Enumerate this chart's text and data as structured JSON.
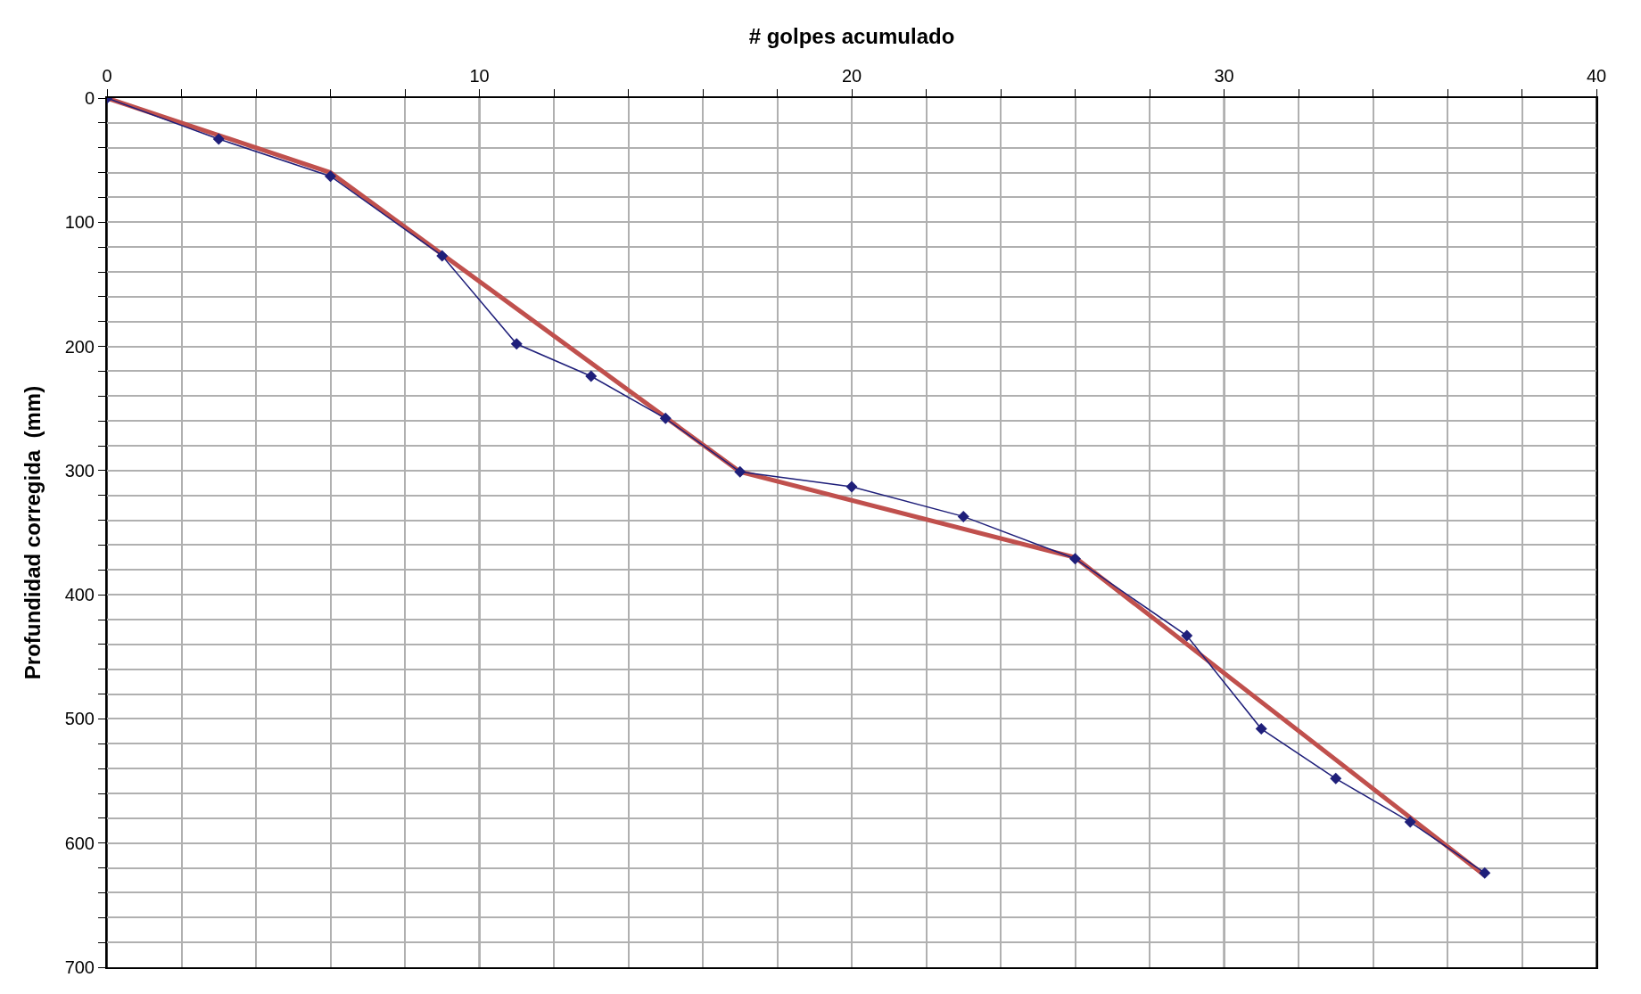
{
  "chart_data": {
    "type": "line",
    "xlabel": "# golpes acumulado",
    "ylabel": "Profundidad corregida  (mm)",
    "xlim": [
      0,
      40
    ],
    "ylim": [
      700,
      0
    ],
    "xticks": [
      0,
      {
        "value": 2,
        "label": null
      },
      {
        "value": 4,
        "label": null
      },
      {
        "value": 6,
        "label": null
      },
      {
        "value": 8,
        "label": null
      },
      10,
      {
        "value": 12,
        "label": null
      },
      {
        "value": 14,
        "label": null
      },
      {
        "value": 16,
        "label": null
      },
      {
        "value": 18,
        "label": null
      },
      20,
      {
        "value": 22,
        "label": null
      },
      {
        "value": 24,
        "label": null
      },
      {
        "value": 26,
        "label": null
      },
      {
        "value": 28,
        "label": null
      },
      30,
      {
        "value": 32,
        "label": null
      },
      {
        "value": 34,
        "label": null
      },
      {
        "value": 36,
        "label": null
      },
      {
        "value": 38,
        "label": null
      },
      40
    ],
    "yticks": [
      0,
      {
        "value": 20,
        "label": null
      },
      {
        "value": 40,
        "label": null
      },
      {
        "value": 60,
        "label": null
      },
      {
        "value": 80,
        "label": null
      },
      100,
      {
        "value": 120,
        "label": null
      },
      {
        "value": 140,
        "label": null
      },
      {
        "value": 160,
        "label": null
      },
      {
        "value": 180,
        "label": null
      },
      200,
      {
        "value": 220,
        "label": null
      },
      {
        "value": 240,
        "label": null
      },
      {
        "value": 260,
        "label": null
      },
      {
        "value": 280,
        "label": null
      },
      300,
      {
        "value": 320,
        "label": null
      },
      {
        "value": 340,
        "label": null
      },
      {
        "value": 360,
        "label": null
      },
      {
        "value": 380,
        "label": null
      },
      400,
      {
        "value": 420,
        "label": null
      },
      {
        "value": 440,
        "label": null
      },
      {
        "value": 460,
        "label": null
      },
      {
        "value": 480,
        "label": null
      },
      500,
      {
        "value": 520,
        "label": null
      },
      {
        "value": 540,
        "label": null
      },
      {
        "value": 560,
        "label": null
      },
      {
        "value": 580,
        "label": null
      },
      600,
      {
        "value": 620,
        "label": null
      },
      {
        "value": 640,
        "label": null
      },
      {
        "value": 660,
        "label": null
      },
      {
        "value": 680,
        "label": null
      },
      700
    ],
    "grid": true,
    "series": [
      {
        "color": "#c0504d",
        "marker": "none",
        "x": [
          0,
          6,
          17,
          26,
          37
        ],
        "values": [
          0,
          60,
          301,
          370,
          626
        ]
      },
      {
        "color": "#1f1f7a",
        "marker": "diamond",
        "x": [
          0,
          3,
          6,
          9,
          11,
          13,
          15,
          17,
          20,
          23,
          26,
          29,
          31,
          33,
          35,
          37
        ],
        "values": [
          0,
          33,
          63,
          127,
          198,
          224,
          258,
          301,
          313,
          337,
          371,
          433,
          508,
          548,
          583,
          624
        ]
      }
    ]
  }
}
